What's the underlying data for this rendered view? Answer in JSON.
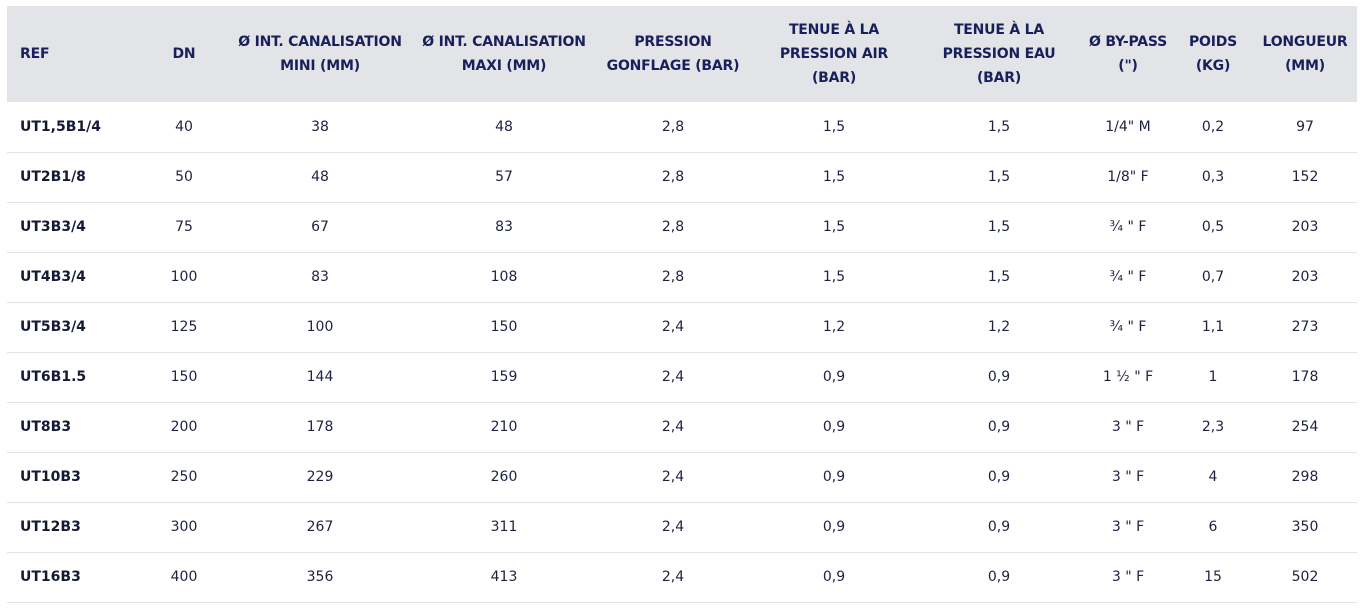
{
  "table": {
    "headers": [
      "REF",
      "DN",
      "Ø INT. CANALISATION MINI (MM)",
      "Ø INT. CANALISATION MAXI (MM)",
      "PRESSION GONFLAGE (BAR)",
      "TENUE À LA PRESSION AIR (BAR)",
      "TENUE À LA PRESSION EAU (BAR)",
      "Ø BY-PASS (\")",
      "POIDS (KG)",
      "LONGUEUR (MM)"
    ],
    "rows": [
      [
        "UT1,5B1/4",
        "40",
        "38",
        "48",
        "2,8",
        "1,5",
        "1,5",
        "1/4\" M",
        "0,2",
        "97"
      ],
      [
        "UT2B1/8",
        "50",
        "48",
        "57",
        "2,8",
        "1,5",
        "1,5",
        "1/8\" F",
        "0,3",
        "152"
      ],
      [
        "UT3B3/4",
        "75",
        "67",
        "83",
        "2,8",
        "1,5",
        "1,5",
        "¾ \" F",
        "0,5",
        "203"
      ],
      [
        "UT4B3/4",
        "100",
        "83",
        "108",
        "2,8",
        "1,5",
        "1,5",
        "¾ \" F",
        "0,7",
        "203"
      ],
      [
        "UT5B3/4",
        "125",
        "100",
        "150",
        "2,4",
        "1,2",
        "1,2",
        "¾ \" F",
        "1,1",
        "273"
      ],
      [
        "UT6B1.5",
        "150",
        "144",
        "159",
        "2,4",
        "0,9",
        "0,9",
        "1 ½ \" F",
        "1",
        "178"
      ],
      [
        "UT8B3",
        "200",
        "178",
        "210",
        "2,4",
        "0,9",
        "0,9",
        "3 \" F",
        "2,3",
        "254"
      ],
      [
        "UT10B3",
        "250",
        "229",
        "260",
        "2,4",
        "0,9",
        "0,9",
        "3 \" F",
        "4",
        "298"
      ],
      [
        "UT12B3",
        "300",
        "267",
        "311",
        "2,4",
        "0,9",
        "0,9",
        "3 \" F",
        "6",
        "350"
      ],
      [
        "UT16B3",
        "400",
        "356",
        "413",
        "2,4",
        "0,9",
        "0,9",
        "3 \" F",
        "15",
        "502"
      ]
    ]
  }
}
